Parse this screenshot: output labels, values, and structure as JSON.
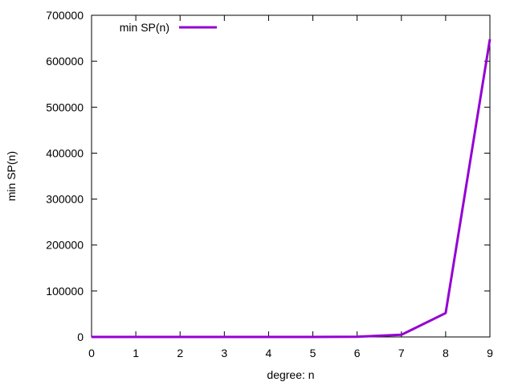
{
  "chart_data": {
    "type": "line",
    "title": "",
    "xlabel": "degree: n",
    "ylabel": "min SP(n)",
    "x": [
      0,
      1,
      2,
      3,
      4,
      5,
      6,
      7,
      8,
      9
    ],
    "series": [
      {
        "name": "min SP(n)",
        "color": "#9400d3",
        "values": [
          0,
          0,
          0,
          0,
          0,
          0,
          500,
          4700,
          52000,
          648000
        ]
      }
    ],
    "xlim": [
      0,
      9
    ],
    "ylim": [
      0,
      700000
    ],
    "xticks": [
      "0",
      "1",
      "2",
      "3",
      "4",
      "5",
      "6",
      "7",
      "8",
      "9"
    ],
    "yticks": [
      "0",
      "100000",
      "200000",
      "300000",
      "400000",
      "500000",
      "600000",
      "700000"
    ],
    "grid": false,
    "legend_position": "top-left"
  }
}
